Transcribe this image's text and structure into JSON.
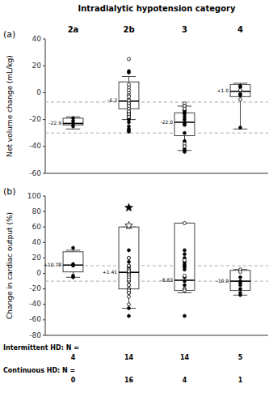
{
  "chart_data": [
    {
      "type": "box",
      "title": "Intradialytic hypotension category",
      "panel_label": "(a)",
      "categories": [
        "2a",
        "2b",
        "3",
        "4"
      ],
      "ylabel": "Net volume change (mL/kg)",
      "ylim": [
        -60,
        40
      ],
      "yticks": [
        -60,
        -40,
        -20,
        0,
        20,
        40
      ],
      "grid": false,
      "color": "#444444",
      "reference_lines": [
        -7,
        -30
      ],
      "q5": [
        -27,
        -20,
        -43,
        -27
      ],
      "q25": [
        -24,
        -12,
        -32,
        -3
      ],
      "medians": [
        -22.9,
        -6.3,
        -22.0,
        1.0
      ],
      "median_labels": [
        "-22.9",
        "-6.3",
        "-22.0",
        "+1.0"
      ],
      "q75": [
        -19,
        8,
        -15,
        6
      ],
      "q95": [
        -18,
        12,
        -10,
        7
      ],
      "points_solid": [
        [
          -23,
          -21,
          -19,
          -25
        ],
        [
          -18,
          -15,
          -10,
          -8,
          -8,
          -10,
          -12,
          -14,
          -15,
          -16,
          -17,
          -19,
          -20,
          -22,
          -25,
          -27,
          -28,
          -29,
          15,
          16
        ],
        [
          -10,
          -12,
          -13,
          -14,
          -15,
          -16,
          -18,
          -20,
          -22,
          -23,
          -24,
          -30,
          -36,
          -40,
          -42,
          -43,
          -44
        ],
        [
          -2,
          -1,
          4,
          5,
          -26
        ]
      ],
      "points_open": [
        [],
        [
          0,
          -2,
          -5,
          -6,
          -8,
          -10,
          -12,
          -14,
          -16,
          -18,
          2,
          4,
          6,
          25,
          -3,
          -18
        ],
        [
          -8,
          -10,
          -38,
          -40,
          -10,
          -12
        ],
        [
          -5,
          2
        ]
      ],
      "stars_solid": [],
      "stars_open": []
    },
    {
      "type": "box",
      "panel_label": "(b)",
      "categories": [
        "2a",
        "2b",
        "3",
        "4"
      ],
      "ylabel": "Change in cardiac output  (%)",
      "ylim": [
        -80,
        100
      ],
      "yticks": [
        -80,
        -60,
        -40,
        -20,
        0,
        20,
        40,
        60,
        80,
        100
      ],
      "grid": false,
      "color": "#444444",
      "reference_lines": [
        10,
        -10
      ],
      "q5": [
        -5,
        -45,
        -25,
        -28
      ],
      "q25": [
        2,
        -20,
        -22,
        -22
      ],
      "medians": [
        10.78,
        1.41,
        -8.83,
        -10.0
      ],
      "median_labels": [
        "+10.78",
        "+1.41",
        "-8.83",
        "-10.0"
      ],
      "q75": [
        28,
        60,
        65,
        4
      ],
      "q95": [
        30,
        60,
        65,
        5
      ],
      "points_solid": [
        [
          10,
          11,
          12,
          -3,
          -5,
          33
        ],
        [
          30,
          20,
          15,
          10,
          8,
          5,
          3,
          2,
          0,
          -1,
          -5,
          -10,
          -15,
          -20,
          -25,
          -45,
          -55
        ],
        [
          30,
          25,
          20,
          15,
          12,
          10,
          8,
          5,
          -5,
          -10,
          -15,
          -20,
          -55
        ],
        [
          -5,
          -10,
          -12,
          -15,
          -20,
          -25,
          -28
        ]
      ],
      "points_open": [
        [],
        [
          60,
          20,
          10,
          5,
          0,
          -2,
          -5,
          -10,
          -15,
          -20,
          -22,
          -25,
          -30,
          -40,
          3,
          -8
        ],
        [
          65,
          17,
          -3,
          -20,
          -22
        ],
        [
          5,
          2
        ]
      ],
      "stars_solid": [
        {
          "category": "2b",
          "value": 85
        }
      ],
      "stars_open": [
        {
          "category": "2b",
          "value": 62
        }
      ],
      "n_rows": [
        {
          "label": "Intermittent HD: N =",
          "values": [
            4,
            14,
            14,
            5
          ]
        },
        {
          "label": "Continuous HD: N =",
          "values": [
            0,
            16,
            4,
            1
          ]
        }
      ]
    }
  ]
}
